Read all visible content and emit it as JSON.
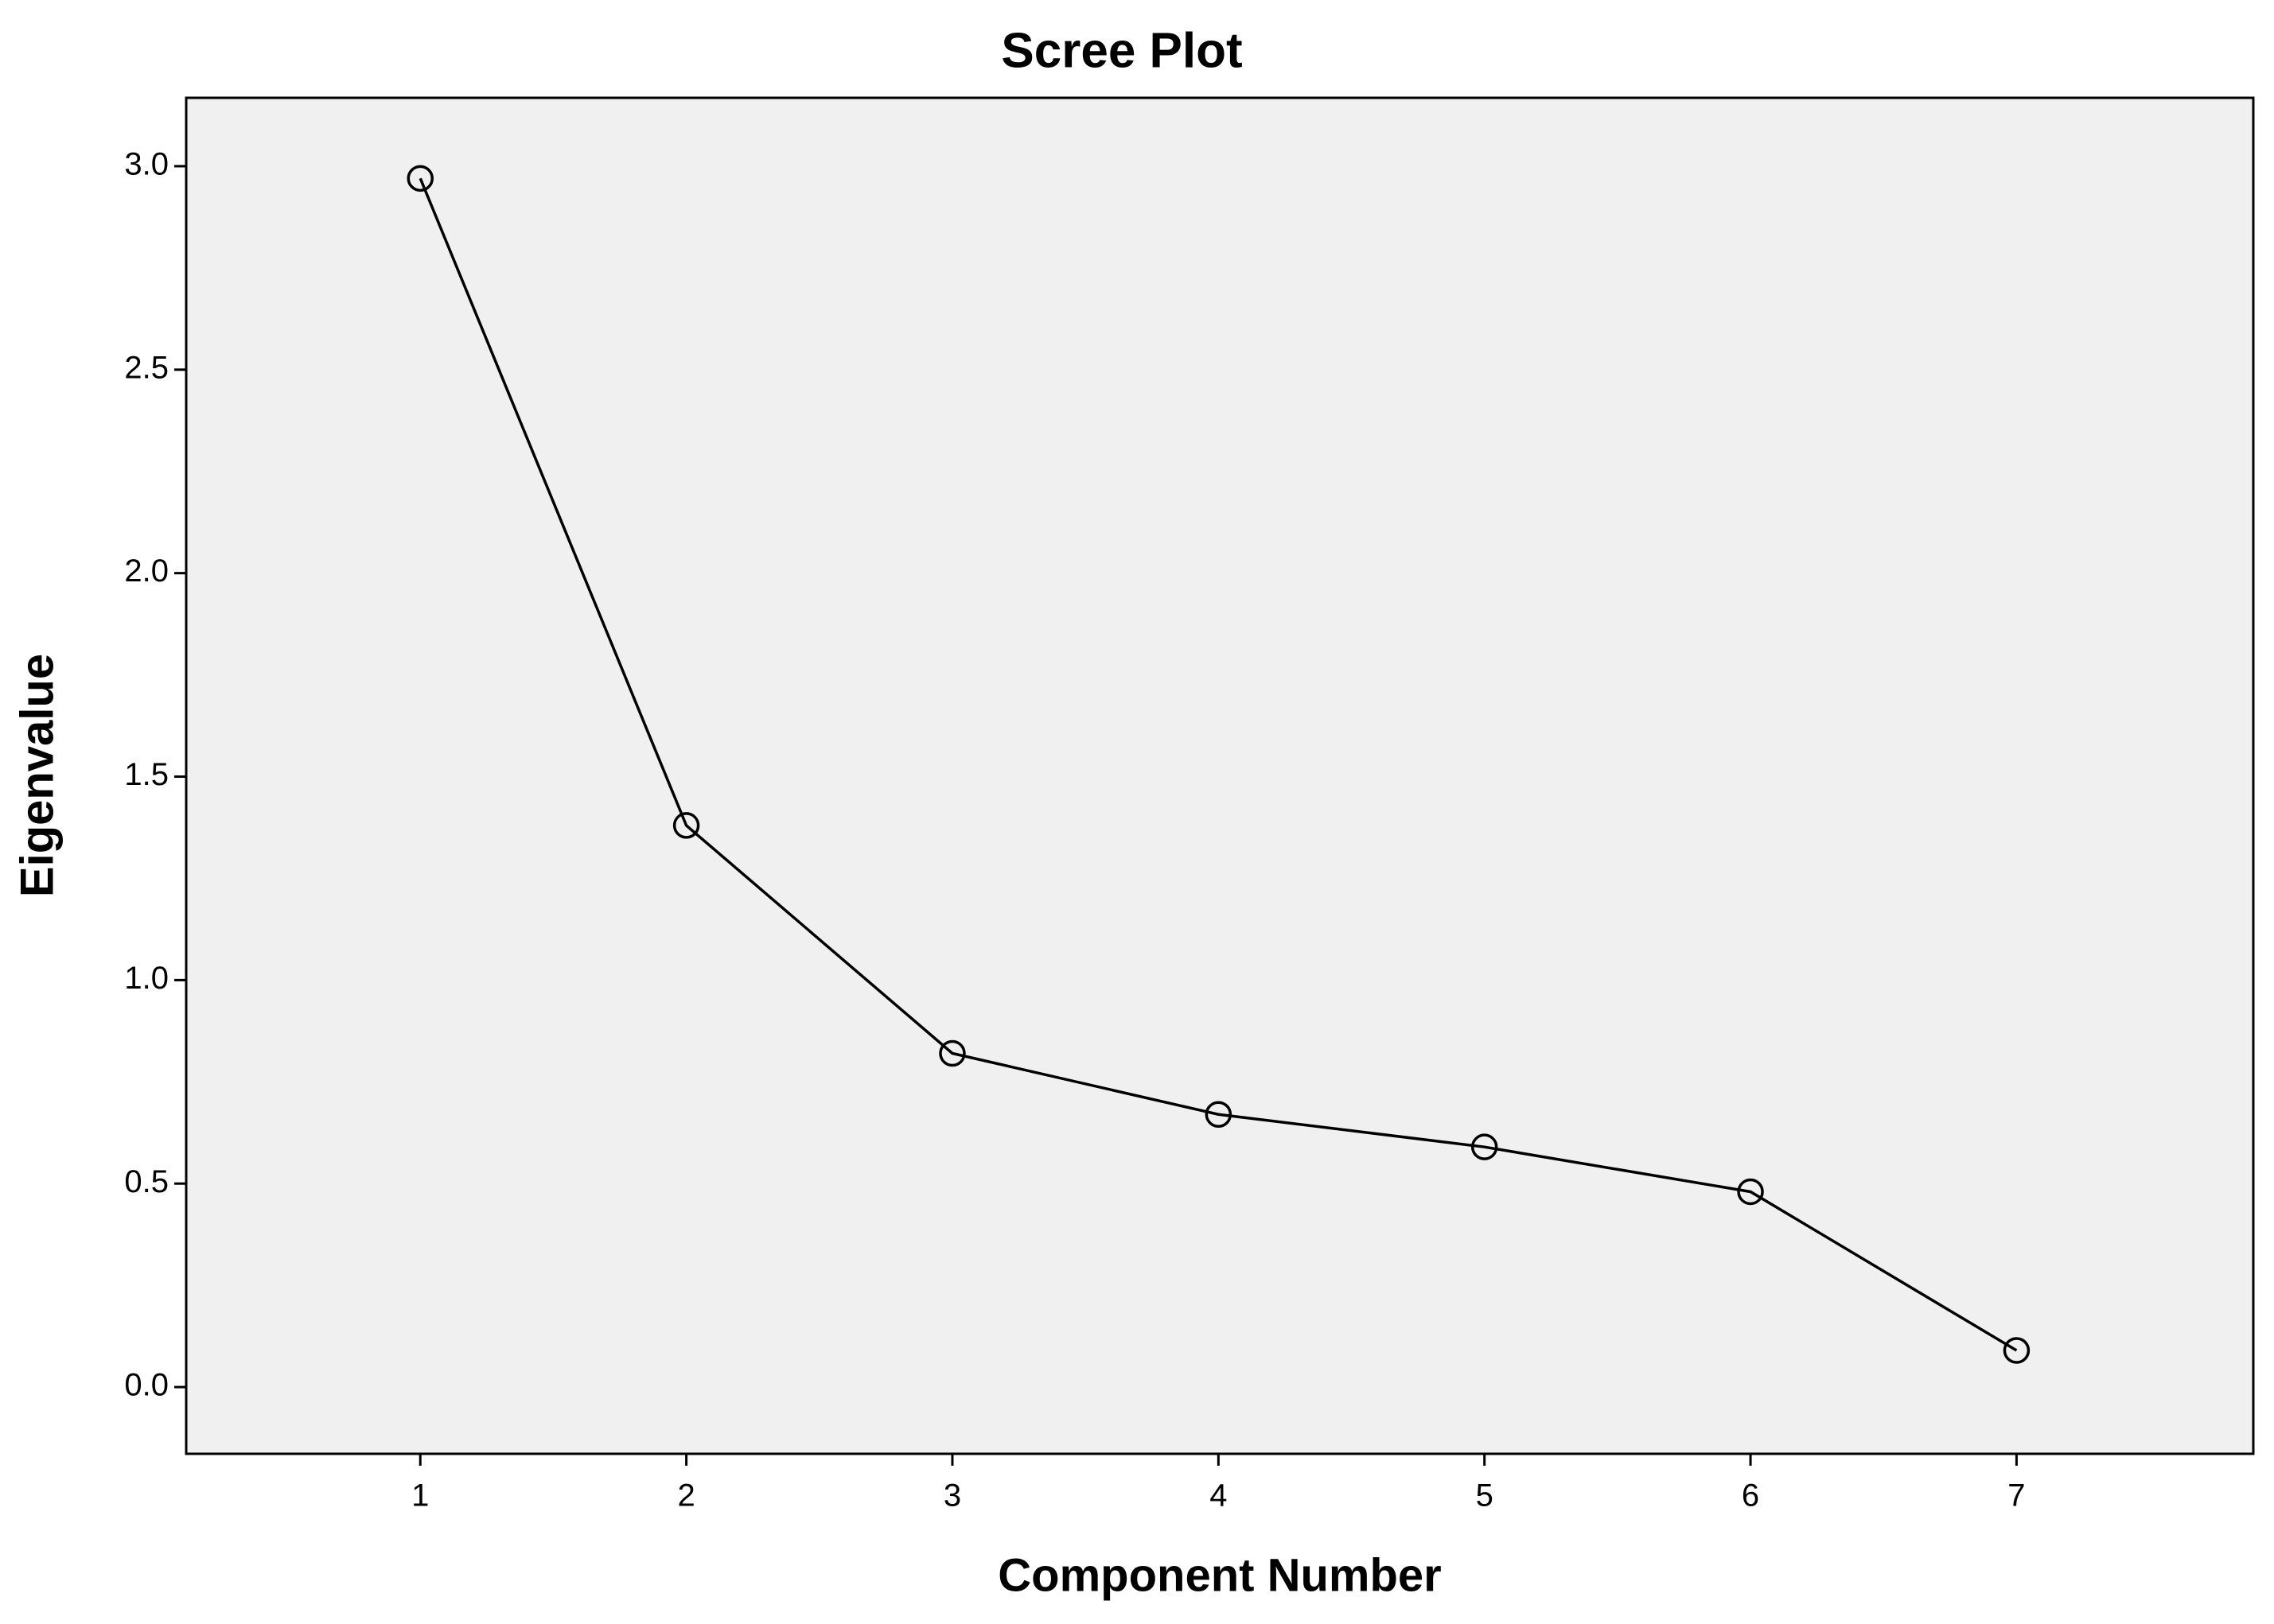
{
  "chart_data": {
    "type": "line",
    "title": "Scree Plot",
    "x_label": "Component Number",
    "y_label": "Eigenvalue",
    "x": [
      1,
      2,
      3,
      4,
      5,
      6,
      7
    ],
    "values": [
      2.97,
      1.38,
      0.82,
      0.67,
      0.59,
      0.48,
      0.09
    ],
    "color": "#000000",
    "xlim": [
      0.12,
      7.89
    ],
    "xticks": [
      1,
      2,
      3,
      4,
      5,
      6,
      7
    ],
    "ylim": [
      -0.164,
      3.168
    ],
    "yticks": [
      {
        "value": 0,
        "label": "0.0"
      },
      0.5,
      {
        "value": 1,
        "label": "1.0"
      },
      1.5,
      {
        "value": 2,
        "label": "2.0"
      },
      2.5,
      {
        "value": 3,
        "label": "3.0"
      }
    ],
    "grid": false
  }
}
